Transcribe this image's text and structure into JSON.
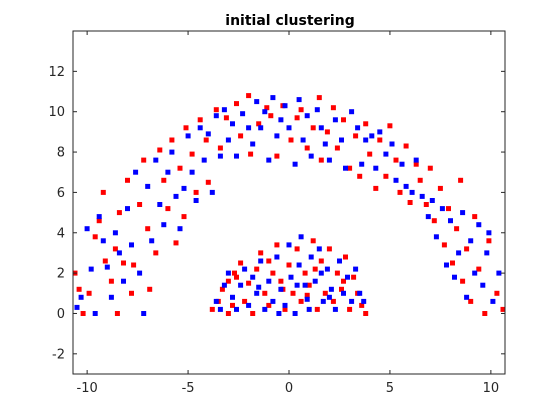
{
  "chart_data": {
    "type": "scatter",
    "title": "initial clustering",
    "xlabel": "",
    "ylabel": "",
    "xlim": [
      -10.7,
      10.7
    ],
    "ylim": [
      -3,
      14
    ],
    "xticks": [
      -10,
      -5,
      0,
      5,
      10
    ],
    "yticks": [
      -2,
      0,
      2,
      4,
      6,
      8,
      10,
      12
    ],
    "grid": false,
    "legend": "none",
    "marker": "square",
    "series": [
      {
        "color": "#ff0000",
        "points": [
          [
            -10.6,
            2.0
          ],
          [
            -10.4,
            1.2
          ],
          [
            -10.2,
            0.0
          ],
          [
            -9.9,
            1.0
          ],
          [
            -9.6,
            3.8
          ],
          [
            -9.4,
            4.6
          ],
          [
            -9.2,
            6.0
          ],
          [
            -9.1,
            2.6
          ],
          [
            -8.8,
            1.6
          ],
          [
            -8.6,
            3.2
          ],
          [
            -8.5,
            0.0
          ],
          [
            -8.4,
            5.0
          ],
          [
            -8.2,
            2.5
          ],
          [
            -8.0,
            6.6
          ],
          [
            -7.8,
            1.0
          ],
          [
            -7.7,
            2.4
          ],
          [
            -7.4,
            5.4
          ],
          [
            -7.2,
            7.6
          ],
          [
            -7.0,
            4.2
          ],
          [
            -6.9,
            1.2
          ],
          [
            -6.6,
            3.0
          ],
          [
            -6.4,
            8.1
          ],
          [
            -6.2,
            6.6
          ],
          [
            -6.0,
            5.2
          ],
          [
            -5.8,
            8.6
          ],
          [
            -5.6,
            3.5
          ],
          [
            -5.4,
            7.2
          ],
          [
            -5.2,
            4.8
          ],
          [
            -5.1,
            9.2
          ],
          [
            -4.8,
            7.9
          ],
          [
            -4.6,
            6.0
          ],
          [
            -4.4,
            9.6
          ],
          [
            -4.1,
            8.6
          ],
          [
            -4.0,
            6.5
          ],
          [
            -3.6,
            10.1
          ],
          [
            -3.4,
            8.2
          ],
          [
            -3.1,
            9.7
          ],
          [
            -2.6,
            10.4
          ],
          [
            -2.4,
            8.8
          ],
          [
            -2.0,
            10.8
          ],
          [
            -1.9,
            7.9
          ],
          [
            -1.5,
            9.4
          ],
          [
            -1.1,
            10.2
          ],
          [
            -0.9,
            9.8
          ],
          [
            -0.6,
            7.8
          ],
          [
            -0.3,
            10.3
          ],
          [
            0.1,
            8.6
          ],
          [
            0.4,
            9.7
          ],
          [
            0.6,
            10.1
          ],
          [
            0.9,
            8.2
          ],
          [
            1.2,
            9.2
          ],
          [
            1.5,
            10.7
          ],
          [
            1.6,
            7.6
          ],
          [
            1.9,
            9.0
          ],
          [
            2.2,
            10.2
          ],
          [
            2.4,
            8.2
          ],
          [
            2.7,
            9.6
          ],
          [
            3.0,
            7.2
          ],
          [
            3.3,
            8.8
          ],
          [
            3.5,
            6.8
          ],
          [
            3.8,
            9.4
          ],
          [
            4.0,
            7.9
          ],
          [
            4.3,
            6.2
          ],
          [
            4.5,
            8.6
          ],
          [
            4.8,
            6.8
          ],
          [
            5.0,
            9.3
          ],
          [
            5.3,
            7.6
          ],
          [
            5.5,
            6.0
          ],
          [
            5.8,
            8.3
          ],
          [
            6.0,
            5.5
          ],
          [
            6.3,
            7.4
          ],
          [
            6.5,
            6.6
          ],
          [
            6.8,
            5.4
          ],
          [
            7.0,
            7.2
          ],
          [
            7.2,
            4.6
          ],
          [
            7.5,
            6.2
          ],
          [
            7.7,
            3.4
          ],
          [
            7.9,
            5.2
          ],
          [
            8.1,
            2.5
          ],
          [
            8.3,
            4.2
          ],
          [
            8.5,
            6.6
          ],
          [
            8.6,
            1.6
          ],
          [
            8.8,
            3.2
          ],
          [
            9.0,
            0.6
          ],
          [
            9.2,
            4.8
          ],
          [
            9.4,
            2.2
          ],
          [
            9.7,
            0.0
          ],
          [
            9.9,
            3.6
          ],
          [
            10.3,
            1.0
          ],
          [
            10.6,
            0.2
          ],
          [
            -3.8,
            0.2
          ],
          [
            -3.5,
            0.6
          ],
          [
            -3.3,
            1.2
          ],
          [
            -3.0,
            0.0
          ],
          [
            -2.8,
            0.4
          ],
          [
            -2.6,
            1.8
          ],
          [
            -2.4,
            2.5
          ],
          [
            -2.2,
            0.6
          ],
          [
            -2.0,
            1.5
          ],
          [
            -1.8,
            0.0
          ],
          [
            -1.6,
            2.2
          ],
          [
            -1.4,
            3.0
          ],
          [
            -1.2,
            1.0
          ],
          [
            -1.0,
            0.4
          ],
          [
            -0.8,
            2.0
          ],
          [
            -0.6,
            3.4
          ],
          [
            -0.4,
            1.6
          ],
          [
            -0.2,
            0.2
          ],
          [
            0.0,
            2.4
          ],
          [
            0.2,
            1.0
          ],
          [
            0.4,
            3.2
          ],
          [
            0.6,
            0.6
          ],
          [
            0.8,
            2.0
          ],
          [
            1.0,
            1.4
          ],
          [
            1.2,
            3.6
          ],
          [
            1.4,
            0.2
          ],
          [
            1.6,
            2.6
          ],
          [
            1.8,
            1.0
          ],
          [
            2.0,
            3.2
          ],
          [
            2.2,
            0.6
          ],
          [
            2.4,
            2.0
          ],
          [
            2.6,
            1.2
          ],
          [
            2.8,
            2.8
          ],
          [
            3.0,
            0.2
          ],
          [
            3.2,
            1.8
          ],
          [
            3.4,
            1.0
          ],
          [
            3.6,
            0.4
          ],
          [
            3.8,
            0.0
          ],
          [
            -3.0,
            1.6
          ],
          [
            -1.0,
            2.6
          ],
          [
            1.3,
            2.2
          ],
          [
            2.7,
            1.6
          ],
          [
            -2.7,
            2.0
          ],
          [
            0.9,
            0.9
          ],
          [
            -0.3,
            1.2
          ]
        ]
      },
      {
        "color": "#0000ff",
        "points": [
          [
            -10.5,
            0.3
          ],
          [
            -10.3,
            0.8
          ],
          [
            -10.0,
            4.2
          ],
          [
            -9.8,
            2.2
          ],
          [
            -9.6,
            0.0
          ],
          [
            -9.4,
            4.8
          ],
          [
            -9.2,
            3.6
          ],
          [
            -9.0,
            2.3
          ],
          [
            -8.8,
            0.8
          ],
          [
            -8.6,
            4.0
          ],
          [
            -8.4,
            3.0
          ],
          [
            -8.2,
            1.6
          ],
          [
            -8.0,
            5.2
          ],
          [
            -7.8,
            3.4
          ],
          [
            -7.6,
            7.0
          ],
          [
            -7.4,
            2.0
          ],
          [
            -7.2,
            0.0
          ],
          [
            -7.0,
            6.3
          ],
          [
            -6.8,
            3.6
          ],
          [
            -6.6,
            7.6
          ],
          [
            -6.4,
            5.4
          ],
          [
            -6.2,
            4.4
          ],
          [
            -6.0,
            7.0
          ],
          [
            -5.8,
            8.0
          ],
          [
            -5.6,
            5.8
          ],
          [
            -5.4,
            4.2
          ],
          [
            -5.2,
            6.2
          ],
          [
            -5.0,
            8.8
          ],
          [
            -4.8,
            7.0
          ],
          [
            -4.6,
            5.6
          ],
          [
            -4.4,
            9.2
          ],
          [
            -4.2,
            7.6
          ],
          [
            -4.0,
            8.9
          ],
          [
            -3.8,
            6.0
          ],
          [
            -3.6,
            9.8
          ],
          [
            -3.4,
            7.8
          ],
          [
            -3.2,
            10.1
          ],
          [
            -3.0,
            8.6
          ],
          [
            -2.8,
            9.4
          ],
          [
            -2.6,
            7.8
          ],
          [
            -2.3,
            9.9
          ],
          [
            -2.0,
            9.2
          ],
          [
            -1.8,
            8.4
          ],
          [
            -1.6,
            10.5
          ],
          [
            -1.4,
            9.2
          ],
          [
            -1.2,
            10.0
          ],
          [
            -1.0,
            7.6
          ],
          [
            -0.8,
            10.7
          ],
          [
            -0.6,
            8.8
          ],
          [
            -0.4,
            9.6
          ],
          [
            -0.2,
            10.3
          ],
          [
            0.0,
            9.2
          ],
          [
            0.3,
            7.4
          ],
          [
            0.5,
            10.6
          ],
          [
            0.7,
            8.6
          ],
          [
            0.9,
            9.8
          ],
          [
            1.1,
            7.8
          ],
          [
            1.4,
            10.1
          ],
          [
            1.6,
            9.2
          ],
          [
            1.8,
            8.4
          ],
          [
            2.0,
            7.6
          ],
          [
            2.3,
            9.6
          ],
          [
            2.6,
            8.6
          ],
          [
            2.8,
            7.2
          ],
          [
            3.1,
            10.0
          ],
          [
            3.4,
            9.2
          ],
          [
            3.6,
            7.4
          ],
          [
            3.8,
            8.6
          ],
          [
            4.1,
            8.8
          ],
          [
            4.3,
            7.2
          ],
          [
            4.5,
            9.0
          ],
          [
            4.8,
            7.9
          ],
          [
            5.1,
            8.4
          ],
          [
            5.3,
            6.6
          ],
          [
            5.6,
            7.4
          ],
          [
            5.8,
            6.3
          ],
          [
            6.1,
            6.0
          ],
          [
            6.3,
            7.6
          ],
          [
            6.6,
            5.8
          ],
          [
            6.9,
            4.8
          ],
          [
            7.1,
            5.6
          ],
          [
            7.3,
            3.8
          ],
          [
            7.6,
            5.2
          ],
          [
            7.8,
            2.4
          ],
          [
            8.0,
            4.6
          ],
          [
            8.2,
            1.8
          ],
          [
            8.4,
            3.0
          ],
          [
            8.6,
            5.0
          ],
          [
            8.8,
            0.8
          ],
          [
            9.0,
            3.6
          ],
          [
            9.2,
            2.0
          ],
          [
            9.4,
            4.4
          ],
          [
            9.6,
            1.4
          ],
          [
            9.8,
            3.0
          ],
          [
            9.9,
            4.0
          ],
          [
            10.1,
            0.6
          ],
          [
            10.4,
            2.0
          ],
          [
            -3.6,
            0.6
          ],
          [
            -3.4,
            0.2
          ],
          [
            -3.2,
            1.4
          ],
          [
            -3.0,
            2.0
          ],
          [
            -2.8,
            0.8
          ],
          [
            -2.6,
            0.2
          ],
          [
            -2.4,
            1.4
          ],
          [
            -2.2,
            2.2
          ],
          [
            -2.0,
            0.4
          ],
          [
            -1.8,
            1.8
          ],
          [
            -1.6,
            1.0
          ],
          [
            -1.4,
            2.6
          ],
          [
            -1.2,
            0.2
          ],
          [
            -1.0,
            1.6
          ],
          [
            -0.8,
            0.6
          ],
          [
            -0.6,
            2.8
          ],
          [
            -0.4,
            1.2
          ],
          [
            -0.2,
            0.4
          ],
          [
            0.0,
            3.4
          ],
          [
            0.1,
            1.8
          ],
          [
            0.3,
            0.0
          ],
          [
            0.5,
            2.4
          ],
          [
            0.6,
            3.8
          ],
          [
            0.8,
            1.4
          ],
          [
            1.0,
            0.2
          ],
          [
            1.1,
            2.8
          ],
          [
            1.3,
            1.6
          ],
          [
            1.5,
            3.2
          ],
          [
            1.7,
            0.6
          ],
          [
            1.9,
            2.2
          ],
          [
            2.1,
            1.2
          ],
          [
            2.3,
            0.2
          ],
          [
            2.5,
            2.6
          ],
          [
            2.7,
            1.0
          ],
          [
            2.9,
            1.8
          ],
          [
            3.1,
            0.6
          ],
          [
            3.3,
            2.2
          ],
          [
            3.5,
            1.0
          ],
          [
            3.7,
            0.6
          ],
          [
            -0.5,
            0.0
          ],
          [
            0.9,
            0.7
          ],
          [
            1.6,
            2.0
          ],
          [
            -1.5,
            1.3
          ],
          [
            0.4,
            1.4
          ],
          [
            2.0,
            0.8
          ]
        ]
      }
    ]
  }
}
